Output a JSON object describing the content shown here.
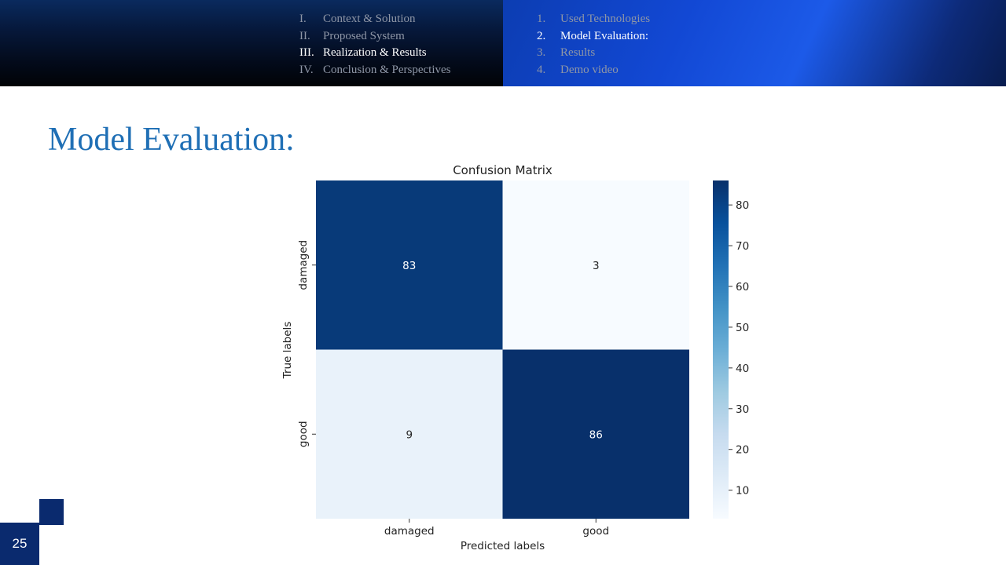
{
  "nav": {
    "sections": [
      {
        "num": "I.",
        "label": "Context & Solution",
        "active": false
      },
      {
        "num": "II.",
        "label": "Proposed System",
        "active": false
      },
      {
        "num": "III.",
        "label": "Realization  & Results",
        "active": true
      },
      {
        "num": "IV.",
        "label": "Conclusion & Perspectives",
        "active": false
      }
    ],
    "subsections": [
      {
        "num": "1.",
        "label": "Used Technologies",
        "active": false
      },
      {
        "num": "2.",
        "label": "Model Evaluation:",
        "active": true
      },
      {
        "num": "3.",
        "label": "Results",
        "active": false
      },
      {
        "num": "4.",
        "label": "Demo video",
        "active": false
      }
    ]
  },
  "slide": {
    "title": "Model Evaluation:",
    "page_number": "25"
  },
  "chart_data": {
    "type": "heatmap",
    "title": "Confusion Matrix",
    "xlabel": "Predicted labels",
    "ylabel": "True labels",
    "x_categories": [
      "damaged",
      "good"
    ],
    "y_categories": [
      "damaged",
      "good"
    ],
    "values": [
      [
        83,
        3
      ],
      [
        9,
        86
      ]
    ],
    "colormap": "Blues",
    "colorbar": {
      "min": 3,
      "max": 86,
      "ticks": [
        10,
        20,
        30,
        40,
        50,
        60,
        70,
        80
      ]
    }
  }
}
